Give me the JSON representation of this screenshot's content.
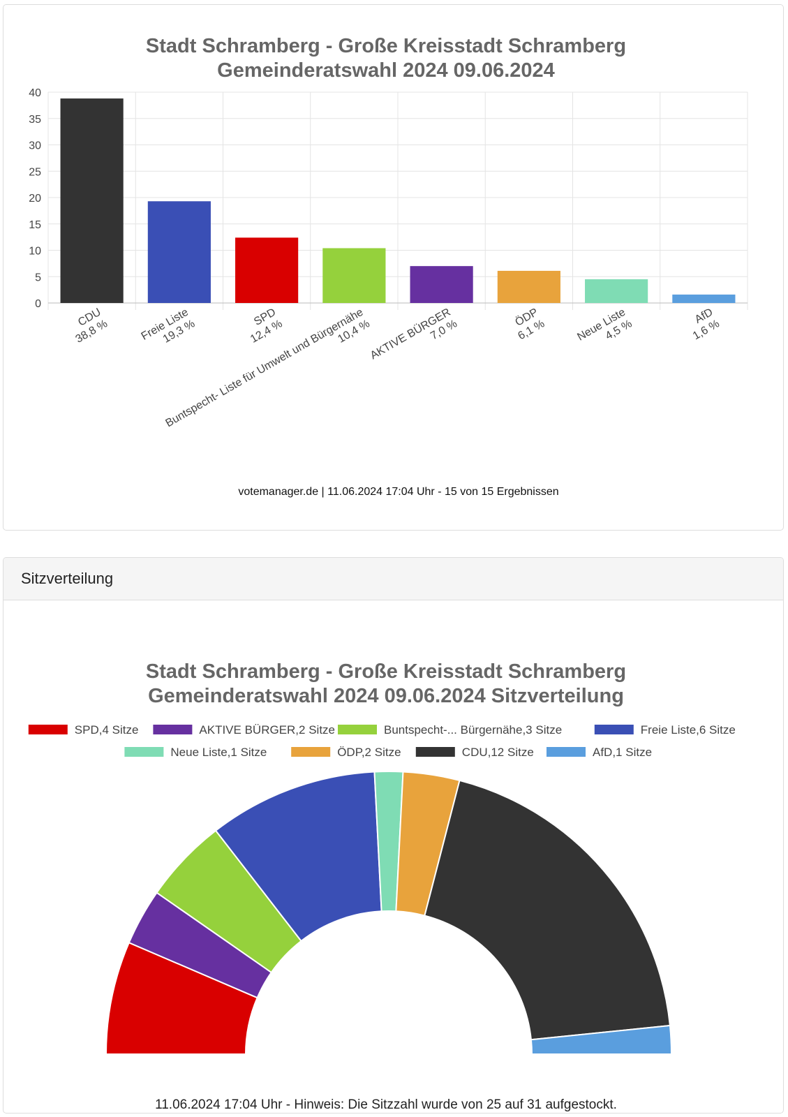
{
  "bar_card": {
    "title_line1": "Stadt Schramberg - Große Kreisstadt Schramberg",
    "title_line2": "Gemeinderatswahl 2024 09.06.2024",
    "credits": "votemanager.de | 11.06.2024 17:04 Uhr - 15 von 15 Ergebnissen"
  },
  "seat_card": {
    "header": "Sitzverteilung",
    "title_line1": "Stadt Schramberg - Große Kreisstadt Schramberg",
    "title_line2": "Gemeinderatswahl 2024 09.06.2024 Sitzverteilung",
    "note": "11.06.2024 17:04 Uhr - Hinweis: Die Sitzzahl wurde von 25 auf 31 aufgestockt."
  },
  "chart_data": [
    {
      "type": "bar",
      "title": "Stadt Schramberg - Große Kreisstadt Schramberg Gemeinderatswahl 2024 09.06.2024",
      "categories": [
        "CDU",
        "Freie Liste",
        "SPD",
        "Buntspecht- Liste für Umwelt und Bürgernähe",
        "AKTIVE BÜRGER",
        "ÖDP",
        "Neue Liste",
        "AfD"
      ],
      "value_labels": [
        "38,8 %",
        "19,3 %",
        "12,4 %",
        "10,4 %",
        "7,0 %",
        "6,1 %",
        "4,5 %",
        "1,6 %"
      ],
      "values": [
        38.8,
        19.3,
        12.4,
        10.4,
        7.0,
        6.1,
        4.5,
        1.6
      ],
      "colors": [
        "#333333",
        "#3a4fb5",
        "#d90000",
        "#95d13c",
        "#6630a0",
        "#e8a33c",
        "#7fdcb4",
        "#5a9ede"
      ],
      "yticks": [
        "0",
        "5",
        "10",
        "15",
        "20",
        "25",
        "30",
        "35",
        "40"
      ],
      "ylim": [
        0,
        40
      ],
      "grid": true,
      "xlabel": "",
      "ylabel": ""
    },
    {
      "type": "pie",
      "subtype": "parliament-semicircle",
      "title": "Stadt Schramberg - Große Kreisstadt Schramberg Gemeinderatswahl 2024 09.06.2024 Sitzverteilung",
      "legend_position": "top",
      "series": [
        {
          "name": "SPD",
          "seats": 4,
          "color": "#d90000",
          "legend_label": "SPD,4 Sitze"
        },
        {
          "name": "AKTIVE BÜRGER",
          "seats": 2,
          "color": "#6630a0",
          "legend_label": "AKTIVE BÜRGER,2 Sitze"
        },
        {
          "name": "Buntspecht- Liste für Umwelt und Bürgernähe",
          "seats": 3,
          "color": "#95d13c",
          "legend_label": "Buntspecht-... Bürgernähe,3 Sitze"
        },
        {
          "name": "Freie Liste",
          "seats": 6,
          "color": "#3a4fb5",
          "legend_label": "Freie Liste,6 Sitze"
        },
        {
          "name": "Neue Liste",
          "seats": 1,
          "color": "#7fdcb4",
          "legend_label": "Neue Liste,1 Sitze"
        },
        {
          "name": "ÖDP",
          "seats": 2,
          "color": "#e8a33c",
          "legend_label": "ÖDP,2 Sitze"
        },
        {
          "name": "CDU",
          "seats": 12,
          "color": "#333333",
          "legend_label": "CDU,12 Sitze"
        },
        {
          "name": "AfD",
          "seats": 1,
          "color": "#5a9ede",
          "legend_label": "AfD,1 Sitze"
        }
      ]
    }
  ]
}
